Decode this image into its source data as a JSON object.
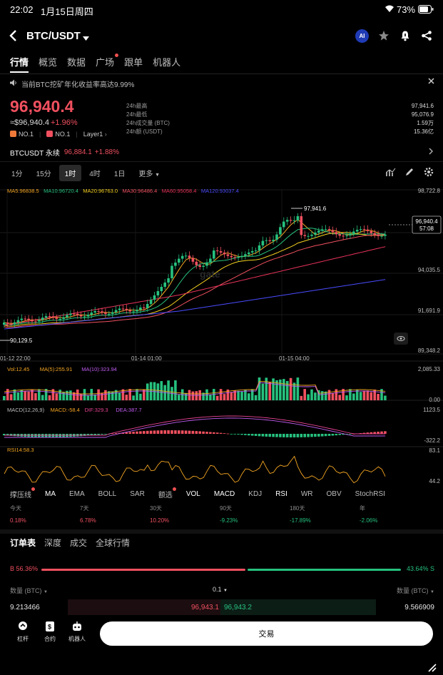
{
  "status_bar": {
    "time": "22:02",
    "date": "1月15日周四",
    "battery": "73%"
  },
  "header": {
    "pair": "BTC/USDT",
    "ai_badge": "AI"
  },
  "tabs": [
    "行情",
    "概览",
    "数据",
    "广场",
    "跟单",
    "机器人"
  ],
  "banner": {
    "text": "当前BTC挖矿年化收益率高达9.99%"
  },
  "price": {
    "last": "96,940.4",
    "fiat": "≈$96,940.4",
    "change": "+1.96%",
    "badges": [
      "NO.1",
      "NO.1",
      "Layer1"
    ]
  },
  "stats": [
    {
      "label": "24h最高",
      "value": "97,941.6"
    },
    {
      "label": "24h最低",
      "value": "95,076.9"
    },
    {
      "label": "24h成交量 (BTC)",
      "value": "1.59万"
    },
    {
      "label": "24h额 (USDT)",
      "value": "15.36亿"
    }
  ],
  "perp": {
    "name": "BTCUSDT 永续",
    "price": "96,884.1",
    "change": "+1.88%"
  },
  "timeframes": [
    "1分",
    "15分",
    "1时",
    "4时",
    "1日",
    "更多"
  ],
  "ma_legend": [
    {
      "text": "MA5:96838.5",
      "color": "#f5a623"
    },
    {
      "text": "MA10:96720.4",
      "color": "#26c17e"
    },
    {
      "text": "MA20:96763.0",
      "color": "#f5d020"
    },
    {
      "text": "MA30:96486.4",
      "color": "#f0505f"
    },
    {
      "text": "MA60:95058.4",
      "color": "#e8335a"
    },
    {
      "text": "MA120:93037.4",
      "color": "#4b4bff"
    }
  ],
  "price_axis": [
    "98,722.8",
    "94,035.5",
    "91,691.9",
    "89,348.2"
  ],
  "price_tag": {
    "price": "96,940.4",
    "countdown": "57:08"
  },
  "hi_label": "97,941.6",
  "lo_label": "90,129.5",
  "time_axis": [
    "01-12 22:00",
    "01-14 01:00",
    "01-15 04:00"
  ],
  "vol_legend": [
    {
      "text": "Vol:12.45",
      "color": "#f5a623"
    },
    {
      "text": "MA(5):255.91",
      "color": "#f5a623"
    },
    {
      "text": "MA(10):323.94",
      "color": "#c05cf0"
    }
  ],
  "vol_axis": [
    "2,085.33",
    "0.00"
  ],
  "macd_legend": [
    {
      "text": "MACD(12,26,9)",
      "color": "#bdbdbd"
    },
    {
      "text": "MACD:-58.4",
      "color": "#f5a623"
    },
    {
      "text": "DIF:329.3",
      "color": "#e84393"
    },
    {
      "text": "DEA:387.7",
      "color": "#c05cf0"
    }
  ],
  "macd_axis": [
    "1123.5",
    "-322.2"
  ],
  "rsi_legend": {
    "text": "RSI14:58.3",
    "color": "#f5a623"
  },
  "rsi_axis": [
    "83.1",
    "44.2"
  ],
  "indicators": [
    "撑压线",
    "MA",
    "EMA",
    "BOLL",
    "SAR",
    "额选",
    "VOL",
    "MACD",
    "KDJ",
    "RSI",
    "WR",
    "OBV",
    "StochRSI"
  ],
  "performance": [
    {
      "label": "今天",
      "value": "0.18%",
      "color": "#f0505f"
    },
    {
      "label": "7天",
      "value": "6.78%",
      "color": "#f0505f"
    },
    {
      "label": "30天",
      "value": "10.20%",
      "color": "#f0505f"
    },
    {
      "label": "90天",
      "value": "-9.23%",
      "color": "#26c17e"
    },
    {
      "label": "180天",
      "value": "-17.89%",
      "color": "#26c17e"
    },
    {
      "label": "年",
      "value": "-2.06%",
      "color": "#26c17e"
    }
  ],
  "orderbook": {
    "tabs": [
      "订单表",
      "深度",
      "成交",
      "全球行情"
    ],
    "buy_ratio": "B 56.36%",
    "sell_ratio": "43.64% S",
    "col_left": "数量 (BTC)",
    "precision": "0.1",
    "col_right": "数量 (BTC)",
    "bid_qty": "9.213466",
    "bid_price": "96,943.1",
    "ask_price": "96,943.2",
    "ask_qty": "9.566909"
  },
  "bottom_nav": {
    "items": [
      "杠杆",
      "合约",
      "机器人"
    ],
    "trade": "交易"
  }
}
